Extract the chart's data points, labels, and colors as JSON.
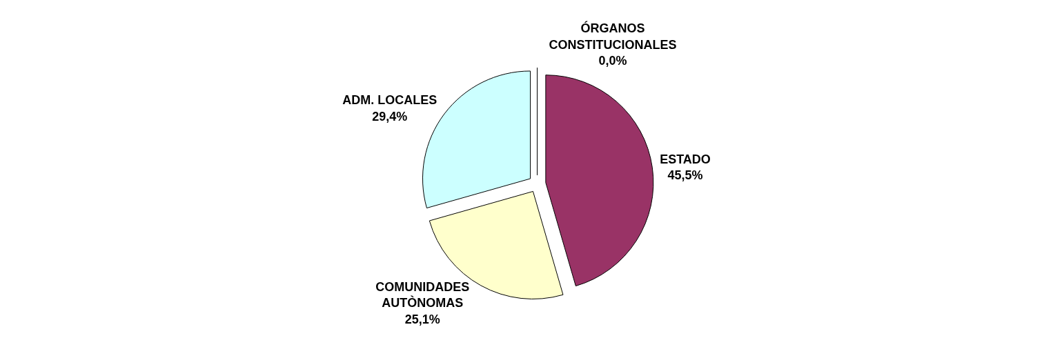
{
  "chart_data": {
    "type": "pie",
    "categories": [
      "ESTADO",
      "COMUNIDADES\nAUTÒNOMAS",
      "ADM. LOCALES",
      "ÓRGANOS\nCONSTITUCIONALES"
    ],
    "values": [
      45.5,
      25.1,
      29.4,
      0.0
    ],
    "value_labels": [
      "45,5%",
      "25,1%",
      "29,4%",
      "0,0%"
    ],
    "colors": [
      "#993366",
      "#ffffcc",
      "#ccffff",
      "#9999ff"
    ],
    "legend": false
  }
}
